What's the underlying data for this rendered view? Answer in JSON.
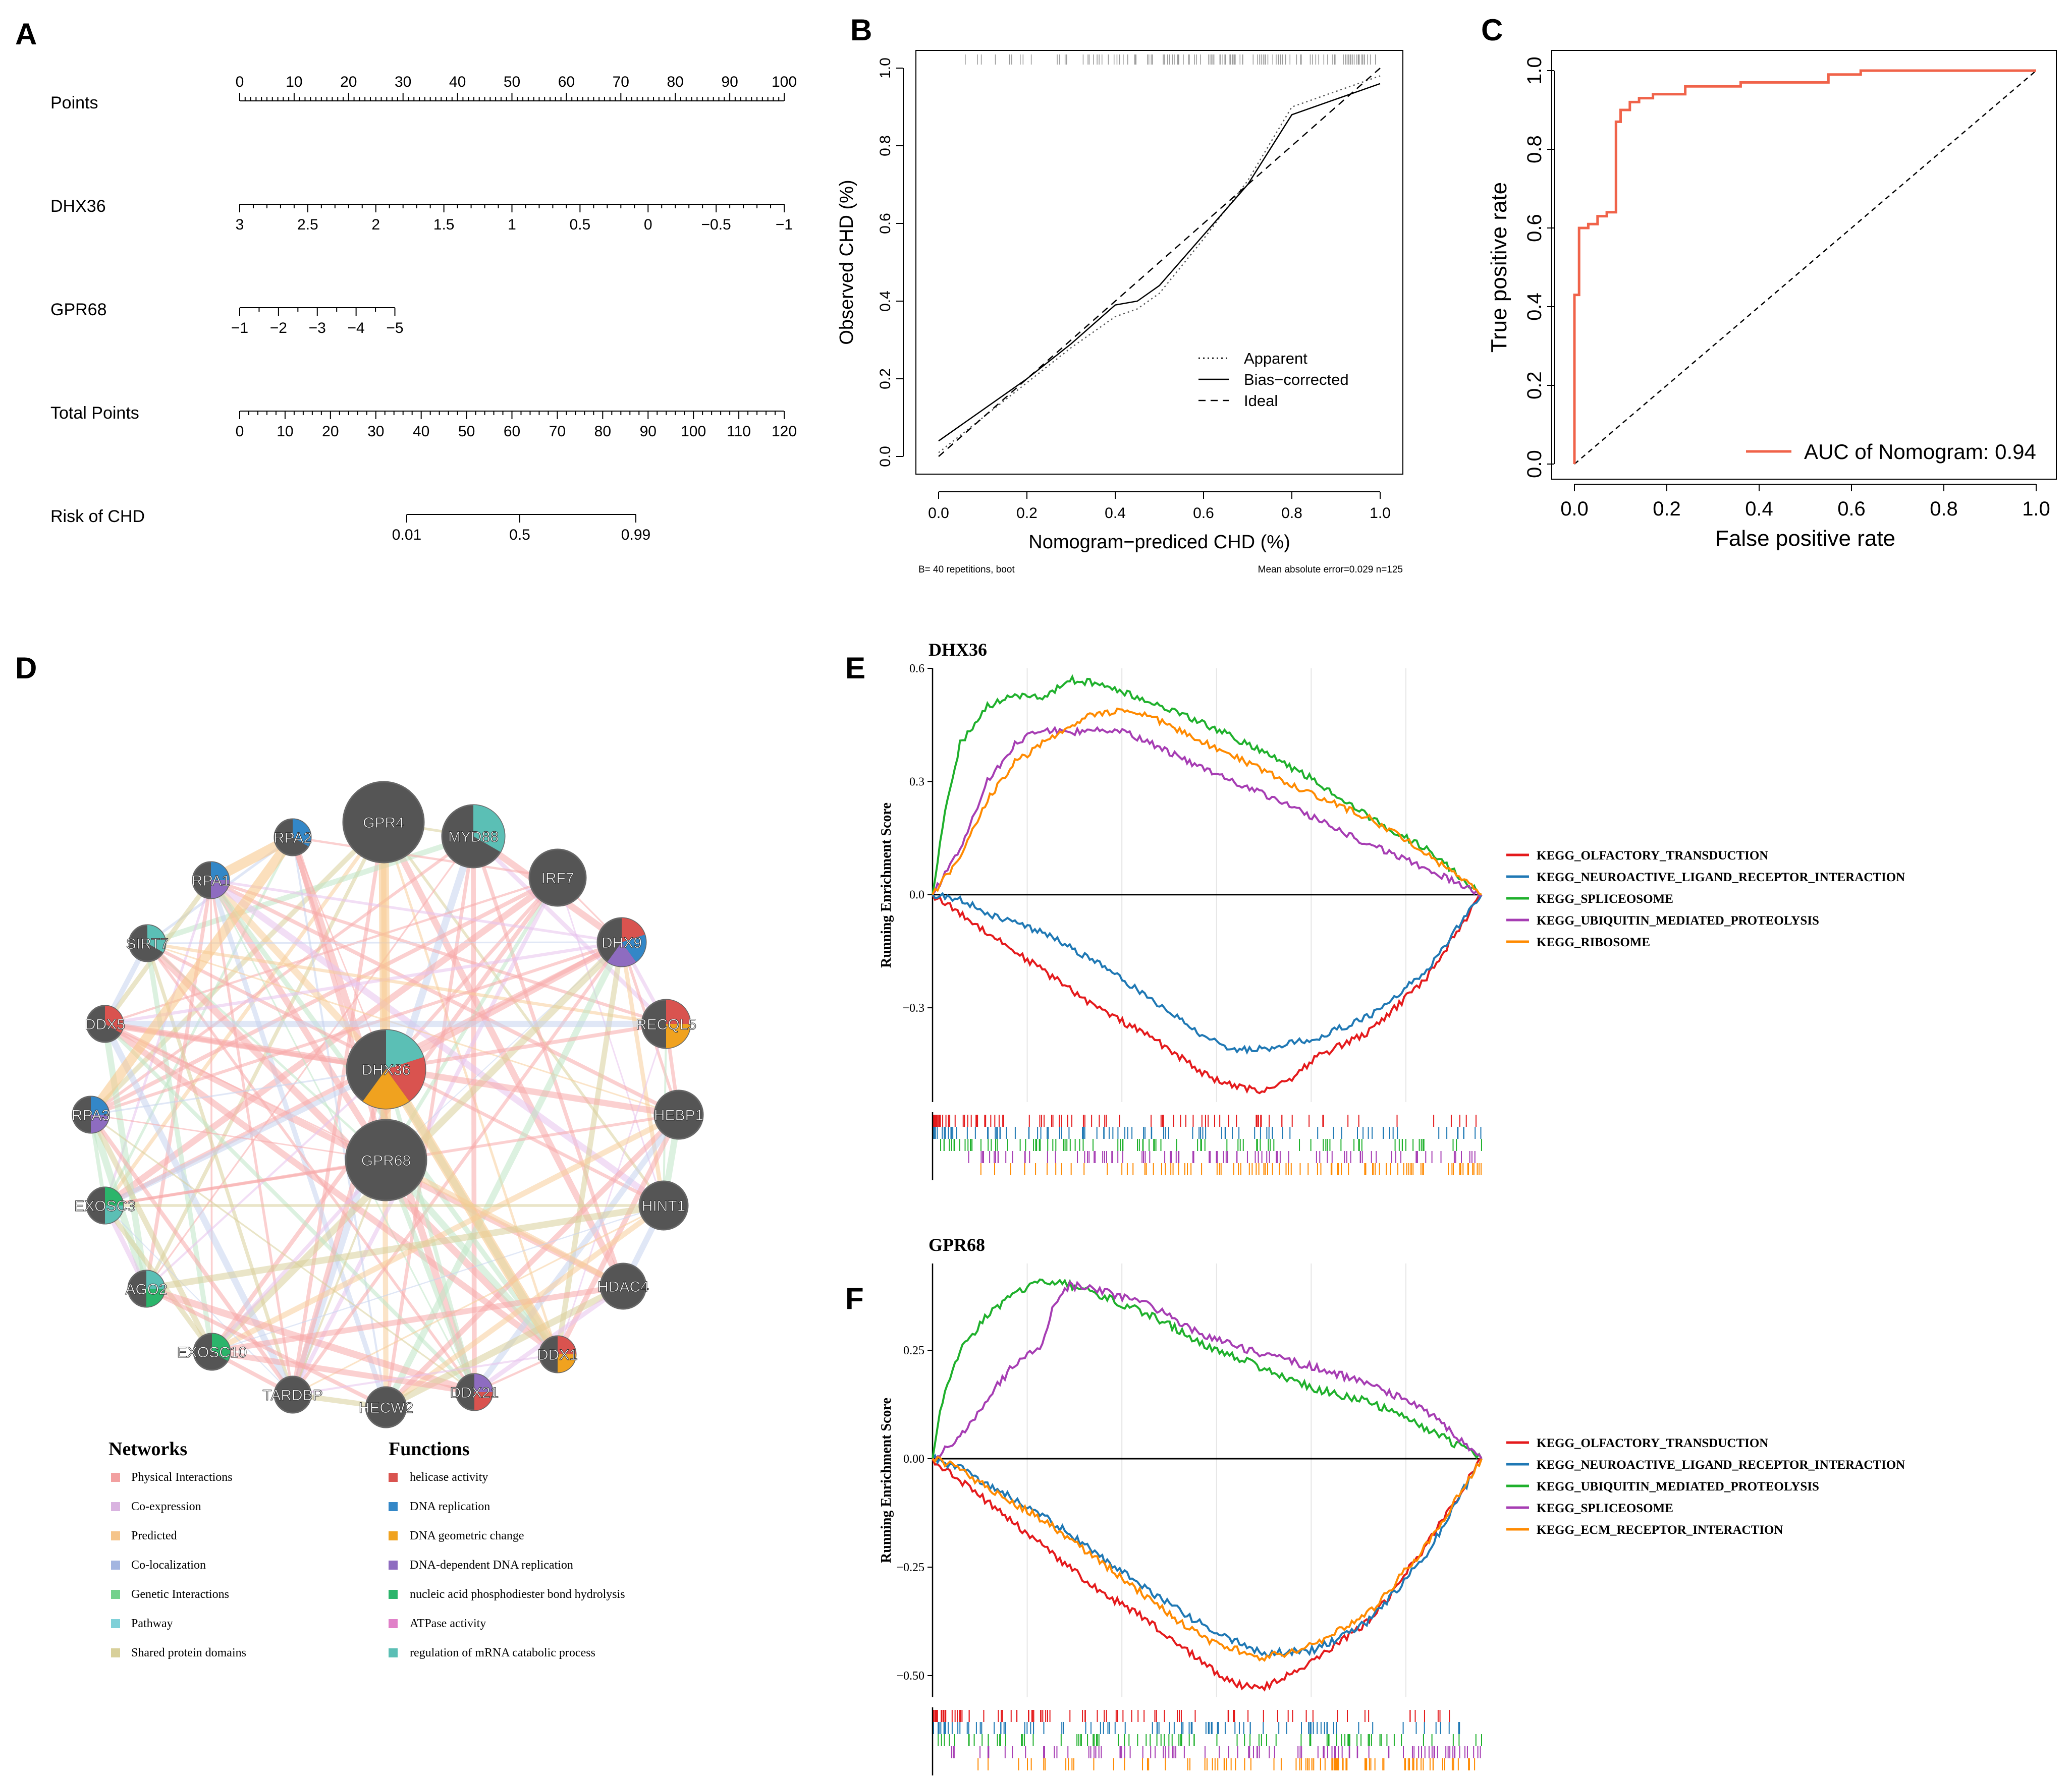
{
  "panel_labels": [
    "A",
    "B",
    "C",
    "D",
    "E",
    "F"
  ],
  "chart_data": [
    {
      "panel": "A",
      "type": "nomogram",
      "rows": [
        {
          "label": "Points",
          "min": 0,
          "max": 100,
          "ticks": [
            "0",
            "10",
            "20",
            "30",
            "40",
            "50",
            "60",
            "70",
            "80",
            "90",
            "100"
          ],
          "labels_above": true
        },
        {
          "label": "DHX36",
          "from": 3,
          "to": -1,
          "ticks": [
            "3",
            "2.5",
            "2",
            "1.5",
            "1",
            "0.5",
            "0",
            "−0.5",
            "−1"
          ],
          "labels_above": false
        },
        {
          "label": "GPR68",
          "from": -1,
          "to": -5,
          "ticks": [
            "−1",
            "−2",
            "−3",
            "−4",
            "−5"
          ],
          "labels_above": false
        },
        {
          "label": "Total Points",
          "min": 0,
          "max": 120,
          "ticks": [
            "0",
            "10",
            "20",
            "30",
            "40",
            "50",
            "60",
            "70",
            "80",
            "90",
            "100",
            "110",
            "120"
          ],
          "labels_above": false
        },
        {
          "label": "Risk of CHD",
          "ticks": [
            "0.01",
            "0.5",
            "0.99"
          ],
          "labels_above": false
        }
      ]
    },
    {
      "panel": "B",
      "type": "line",
      "xlabel": "Nomogram−prediced CHD (%)",
      "ylabel": "Observed CHD (%)",
      "xlim": [
        0,
        1
      ],
      "ylim": [
        0,
        1
      ],
      "xticks": [
        "0.0",
        "0.2",
        "0.4",
        "0.6",
        "0.8",
        "1.0"
      ],
      "yticks": [
        "0.0",
        "0.2",
        "0.4",
        "0.6",
        "0.8",
        "1.0"
      ],
      "legend": [
        "Apparent",
        "Bias−corrected",
        "Ideal"
      ],
      "footnote_left": "B= 40 repetitions, boot",
      "footnote_right": "Mean absolute error=0.029 n=125",
      "series": [
        {
          "name": "Apparent",
          "style": "dotted",
          "x": [
            0,
            0.1,
            0.2,
            0.3,
            0.4,
            0.45,
            0.5,
            0.6,
            0.7,
            0.8,
            0.9,
            1.0
          ],
          "y": [
            0.01,
            0.1,
            0.19,
            0.28,
            0.36,
            0.38,
            0.42,
            0.56,
            0.71,
            0.9,
            0.94,
            0.98
          ]
        },
        {
          "name": "Bias−corrected",
          "style": "solid",
          "x": [
            0,
            0.1,
            0.2,
            0.3,
            0.4,
            0.45,
            0.5,
            0.6,
            0.7,
            0.8,
            0.9,
            1.0
          ],
          "y": [
            0.04,
            0.12,
            0.2,
            0.29,
            0.39,
            0.4,
            0.44,
            0.57,
            0.7,
            0.88,
            0.92,
            0.96
          ]
        },
        {
          "name": "Ideal",
          "style": "dashed",
          "x": [
            0,
            1
          ],
          "y": [
            0,
            1
          ]
        }
      ]
    },
    {
      "panel": "C",
      "type": "line",
      "xlabel": "False positive rate",
      "ylabel": "True positive rate",
      "xlim": [
        0,
        1
      ],
      "ylim": [
        0,
        1
      ],
      "xticks": [
        "0.0",
        "0.2",
        "0.4",
        "0.6",
        "0.8",
        "1.0"
      ],
      "yticks": [
        "0.0",
        "0.2",
        "0.4",
        "0.6",
        "0.8",
        "1.0"
      ],
      "legend_text": "AUC of Nomogram: 0.94",
      "series": [
        {
          "name": "ROC",
          "color": "#f0634a",
          "x": [
            0,
            0,
            0.01,
            0.01,
            0.03,
            0.03,
            0.05,
            0.05,
            0.07,
            0.07,
            0.09,
            0.09,
            0.1,
            0.1,
            0.12,
            0.12,
            0.14,
            0.14,
            0.17,
            0.17,
            0.24,
            0.24,
            0.36,
            0.36,
            0.55,
            0.55,
            0.62,
            0.62,
            1.0
          ],
          "y": [
            0,
            0.43,
            0.43,
            0.6,
            0.6,
            0.61,
            0.61,
            0.63,
            0.63,
            0.64,
            0.64,
            0.87,
            0.87,
            0.9,
            0.9,
            0.92,
            0.92,
            0.93,
            0.93,
            0.94,
            0.94,
            0.96,
            0.96,
            0.97,
            0.97,
            0.99,
            0.99,
            1.0,
            1.0
          ]
        },
        {
          "name": "chance",
          "style": "dashed",
          "x": [
            0,
            1
          ],
          "y": [
            0,
            1
          ]
        }
      ]
    },
    {
      "panel": "E",
      "type": "line",
      "title": "DHX36",
      "ylabel": "Running Enrichment Score",
      "ylim": [
        -0.55,
        0.6
      ],
      "yticks": [
        "0.6",
        "0.3",
        "0.0",
        "−0.3"
      ],
      "series": [
        {
          "name": "KEGG_OLFACTORY_TRANSDUCTION",
          "color": "#e41a1c",
          "x": [
            0,
            0.1,
            0.2,
            0.3,
            0.4,
            0.5,
            0.55,
            0.6,
            0.65,
            0.7,
            0.8,
            0.9,
            1.0
          ],
          "y": [
            0,
            -0.1,
            -0.2,
            -0.3,
            -0.38,
            -0.48,
            -0.51,
            -0.52,
            -0.49,
            -0.43,
            -0.36,
            -0.22,
            0
          ]
        },
        {
          "name": "KEGG_NEUROACTIVE_LIGAND_RECEPTOR_INTERACTION",
          "color": "#1f78b4",
          "x": [
            0,
            0.05,
            0.1,
            0.2,
            0.3,
            0.4,
            0.5,
            0.55,
            0.6,
            0.7,
            0.8,
            0.9,
            1.0
          ],
          "y": [
            0,
            -0.01,
            -0.05,
            -0.1,
            -0.18,
            -0.28,
            -0.38,
            -0.41,
            -0.41,
            -0.38,
            -0.32,
            -0.2,
            0
          ]
        },
        {
          "name": "KEGG_SPLICEOSOME",
          "color": "#1fb02c",
          "x": [
            0,
            0.02,
            0.05,
            0.1,
            0.15,
            0.2,
            0.25,
            0.3,
            0.4,
            0.5,
            0.6,
            0.7,
            0.8,
            0.9,
            1.0
          ],
          "y": [
            0,
            0.2,
            0.4,
            0.5,
            0.53,
            0.52,
            0.57,
            0.56,
            0.51,
            0.45,
            0.38,
            0.3,
            0.2,
            0.12,
            0
          ]
        },
        {
          "name": "KEGG_UBIQUITIN_MEDIATED_PROTEOLYSIS",
          "color": "#a63db3",
          "x": [
            0,
            0.05,
            0.1,
            0.15,
            0.2,
            0.25,
            0.3,
            0.35,
            0.4,
            0.5,
            0.6,
            0.7,
            0.8,
            0.9,
            1.0
          ],
          "y": [
            0,
            0.12,
            0.3,
            0.4,
            0.44,
            0.43,
            0.44,
            0.43,
            0.4,
            0.33,
            0.27,
            0.2,
            0.13,
            0.07,
            0
          ]
        },
        {
          "name": "KEGG_RIBOSOME",
          "color": "#ff8a00",
          "x": [
            0,
            0.05,
            0.1,
            0.15,
            0.2,
            0.25,
            0.3,
            0.35,
            0.4,
            0.5,
            0.6,
            0.7,
            0.8,
            0.9,
            1.0
          ],
          "y": [
            0,
            0.1,
            0.25,
            0.35,
            0.4,
            0.45,
            0.48,
            0.49,
            0.47,
            0.4,
            0.33,
            0.26,
            0.2,
            0.11,
            0
          ]
        }
      ]
    },
    {
      "panel": "F",
      "type": "line",
      "title": "GPR68",
      "ylabel": "Running Enrichment Score",
      "ylim": [
        -0.55,
        0.45
      ],
      "yticks": [
        "0.25",
        "0.00",
        "−0.25",
        "−0.50"
      ],
      "series": [
        {
          "name": "KEGG_OLFACTORY_TRANSDUCTION",
          "color": "#e41a1c",
          "x": [
            0,
            0.1,
            0.2,
            0.3,
            0.4,
            0.5,
            0.55,
            0.6,
            0.65,
            0.7,
            0.8,
            0.9,
            1.0
          ],
          "y": [
            0,
            -0.1,
            -0.2,
            -0.3,
            -0.38,
            -0.48,
            -0.52,
            -0.53,
            -0.5,
            -0.46,
            -0.37,
            -0.2,
            0
          ]
        },
        {
          "name": "KEGG_NEUROACTIVE_LIGAND_RECEPTOR_INTERACTION",
          "color": "#1f78b4",
          "x": [
            0,
            0.05,
            0.1,
            0.2,
            0.3,
            0.4,
            0.5,
            0.6,
            0.7,
            0.8,
            0.9,
            1.0
          ],
          "y": [
            0,
            -0.02,
            -0.06,
            -0.13,
            -0.22,
            -0.31,
            -0.39,
            -0.45,
            -0.44,
            -0.37,
            -0.22,
            0
          ]
        },
        {
          "name": "KEGG_UBIQUITIN_MEDIATED_PROTEOLYSIS",
          "color": "#1fb02c",
          "x": [
            0,
            0.02,
            0.05,
            0.1,
            0.15,
            0.2,
            0.25,
            0.3,
            0.4,
            0.5,
            0.6,
            0.7,
            0.8,
            0.9,
            1.0
          ],
          "y": [
            0,
            0.15,
            0.25,
            0.33,
            0.38,
            0.41,
            0.4,
            0.38,
            0.33,
            0.26,
            0.21,
            0.16,
            0.13,
            0.07,
            0
          ]
        },
        {
          "name": "KEGG_SPLICEOSOME",
          "color": "#a63db3",
          "x": [
            0,
            0.05,
            0.1,
            0.15,
            0.2,
            0.22,
            0.25,
            0.3,
            0.4,
            0.5,
            0.6,
            0.7,
            0.8,
            0.9,
            1.0
          ],
          "y": [
            0,
            0.05,
            0.14,
            0.22,
            0.26,
            0.35,
            0.4,
            0.39,
            0.35,
            0.28,
            0.24,
            0.21,
            0.17,
            0.11,
            0
          ]
        },
        {
          "name": "KEGG_ECM_RECEPTOR_INTERACTION",
          "color": "#ff8a00",
          "x": [
            0,
            0.05,
            0.1,
            0.2,
            0.3,
            0.4,
            0.5,
            0.6,
            0.7,
            0.8,
            0.9,
            1.0
          ],
          "y": [
            0,
            -0.02,
            -0.07,
            -0.14,
            -0.23,
            -0.33,
            -0.42,
            -0.46,
            -0.43,
            -0.35,
            -0.2,
            0
          ]
        }
      ]
    }
  ],
  "network": {
    "nodes": [
      "GPR4",
      "MYD88",
      "IRF7",
      "RPA2",
      "RPA1",
      "SIRT7",
      "DHX9",
      "DDX5",
      "RECQL5",
      "DHX36",
      "RPA3",
      "HEBP1",
      "GPR68",
      "EXOSC3",
      "HINT1",
      "AGO2",
      "HDAC4",
      "EXOSC10",
      "DDX1",
      "TARDBP",
      "HECW2",
      "DDX21"
    ],
    "networks_title": "Networks",
    "networks": [
      {
        "label": "Physical Interactions",
        "color": "#f2a0a0"
      },
      {
        "label": "Co-expression",
        "color": "#d9b3e0"
      },
      {
        "label": "Predicted",
        "color": "#f5c48a"
      },
      {
        "label": "Co-localization",
        "color": "#a3b5e0"
      },
      {
        "label": "Genetic Interactions",
        "color": "#74d18d"
      },
      {
        "label": "Pathway",
        "color": "#7fd0d8"
      },
      {
        "label": "Shared protein domains",
        "color": "#d8d09a"
      }
    ],
    "functions_title": "Functions",
    "functions": [
      {
        "label": "helicase activity",
        "color": "#d9534f"
      },
      {
        "label": "DNA replication",
        "color": "#3387c7"
      },
      {
        "label": "DNA geometric change",
        "color": "#f0a21f"
      },
      {
        "label": "DNA-dependent DNA replication",
        "color": "#8e6cc0"
      },
      {
        "label": "nucleic acid phosphodiester bond hydrolysis",
        "color": "#2bb56b"
      },
      {
        "label": "ATPase activity",
        "color": "#e080c8"
      },
      {
        "label": "regulation of mRNA catabolic process",
        "color": "#5bbfb5"
      }
    ]
  }
}
